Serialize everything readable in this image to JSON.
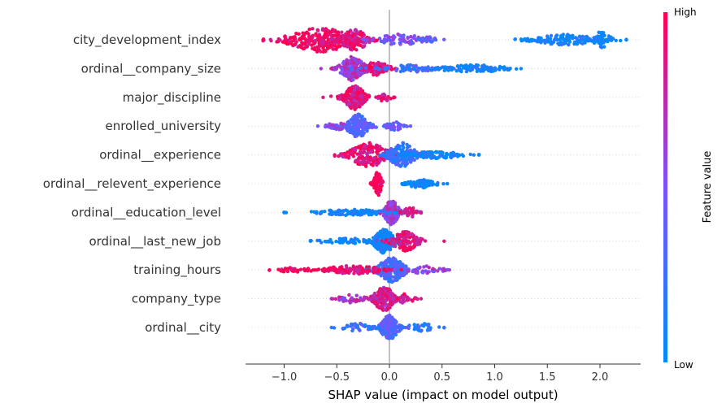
{
  "chart_data": {
    "type": "scatter",
    "subtype": "shap-beeswarm",
    "title": "",
    "xlabel": "SHAP value (impact on model output)",
    "ylabel": "",
    "xlim": [
      -1.35,
      2.4
    ],
    "xticks": [
      -1.0,
      -0.5,
      0.0,
      0.5,
      1.0,
      1.5,
      2.0
    ],
    "xtick_labels": [
      "−1.0",
      "−0.5",
      "0.0",
      "0.5",
      "1.0",
      "1.5",
      "2.0"
    ],
    "grid": false,
    "zero_line": true,
    "features": [
      {
        "name": "city_development_index",
        "range": [
          -1.2,
          2.25
        ],
        "clusters": [
          {
            "center": -0.65,
            "spread": 0.22,
            "height": 1.0,
            "value": 0.95,
            "count": 260
          },
          {
            "center": -0.33,
            "spread": 0.09,
            "height": 0.9,
            "value": 0.85,
            "count": 120
          },
          {
            "center": 0.1,
            "spread": 0.15,
            "height": 0.5,
            "value": 0.5,
            "count": 70
          },
          {
            "center": 0.38,
            "spread": 0.06,
            "height": 0.3,
            "value": 0.4,
            "count": 20
          },
          {
            "center": 1.65,
            "spread": 0.22,
            "height": 0.45,
            "value": 0.05,
            "count": 130
          },
          {
            "center": 2.02,
            "spread": 0.06,
            "height": 0.7,
            "value": 0.02,
            "count": 60
          }
        ]
      },
      {
        "name": "ordinal__company_size",
        "range": [
          -0.65,
          1.25
        ],
        "clusters": [
          {
            "center": -0.35,
            "spread": 0.08,
            "height": 1.0,
            "value": 0.65,
            "count": 180
          },
          {
            "center": -0.12,
            "spread": 0.08,
            "height": 0.6,
            "value": 0.85,
            "count": 90
          },
          {
            "center": 0.2,
            "spread": 0.18,
            "height": 0.3,
            "value": 0.3,
            "count": 70
          },
          {
            "center": 0.8,
            "spread": 0.25,
            "height": 0.3,
            "value": 0.05,
            "count": 110
          }
        ]
      },
      {
        "name": "major_discipline",
        "range": [
          -0.63,
          0.05
        ],
        "clusters": [
          {
            "center": -0.33,
            "spread": 0.07,
            "height": 1.0,
            "value": 0.85,
            "count": 230
          },
          {
            "center": -0.05,
            "spread": 0.04,
            "height": 0.35,
            "value": 0.9,
            "count": 20
          }
        ]
      },
      {
        "name": "enrolled_university",
        "range": [
          -0.68,
          0.2
        ],
        "clusters": [
          {
            "center": -0.3,
            "spread": 0.07,
            "height": 1.0,
            "value": 0.35,
            "count": 170
          },
          {
            "center": -0.5,
            "spread": 0.07,
            "height": 0.3,
            "value": 0.5,
            "count": 40
          },
          {
            "center": 0.05,
            "spread": 0.06,
            "height": 0.35,
            "value": 0.4,
            "count": 40
          }
        ]
      },
      {
        "name": "ordinal__experience",
        "range": [
          -0.52,
          0.85
        ],
        "clusters": [
          {
            "center": -0.2,
            "spread": 0.13,
            "height": 1.0,
            "value": 0.9,
            "count": 210
          },
          {
            "center": 0.12,
            "spread": 0.09,
            "height": 1.0,
            "value": 0.2,
            "count": 180
          },
          {
            "center": 0.45,
            "spread": 0.18,
            "height": 0.3,
            "value": 0.05,
            "count": 90
          }
        ]
      },
      {
        "name": "ordinal__relevent_experience",
        "range": [
          -0.18,
          0.55
        ],
        "clusters": [
          {
            "center": -0.11,
            "spread": 0.025,
            "height": 1.0,
            "value": 0.97,
            "count": 110
          },
          {
            "center": 0.3,
            "spread": 0.1,
            "height": 0.35,
            "value": 0.03,
            "count": 90
          }
        ]
      },
      {
        "name": "ordinal__education_level",
        "range": [
          -1.0,
          0.3
        ],
        "clusters": [
          {
            "center": 0.02,
            "spread": 0.05,
            "height": 1.0,
            "value": 0.65,
            "count": 170
          },
          {
            "center": -0.35,
            "spread": 0.25,
            "height": 0.25,
            "value": 0.05,
            "count": 110
          },
          {
            "center": 0.2,
            "spread": 0.05,
            "height": 0.45,
            "value": 0.8,
            "count": 40
          }
        ]
      },
      {
        "name": "ordinal__last_new_job",
        "range": [
          -0.75,
          0.52
        ],
        "clusters": [
          {
            "center": -0.05,
            "spread": 0.07,
            "height": 1.0,
            "value": 0.05,
            "count": 200
          },
          {
            "center": 0.15,
            "spread": 0.09,
            "height": 0.8,
            "value": 0.9,
            "count": 130
          },
          {
            "center": -0.4,
            "spread": 0.2,
            "height": 0.25,
            "value": 0.03,
            "count": 60
          }
        ]
      },
      {
        "name": "training_hours",
        "range": [
          -1.14,
          0.57
        ],
        "clusters": [
          {
            "center": 0.02,
            "spread": 0.09,
            "height": 1.0,
            "value": 0.3,
            "count": 220
          },
          {
            "center": -0.35,
            "spread": 0.2,
            "height": 0.35,
            "value": 0.92,
            "count": 120
          },
          {
            "center": -0.9,
            "spread": 0.12,
            "height": 0.2,
            "value": 0.95,
            "count": 30
          },
          {
            "center": 0.35,
            "spread": 0.12,
            "height": 0.35,
            "value": 0.6,
            "count": 40
          }
        ]
      },
      {
        "name": "company_type",
        "range": [
          -0.55,
          0.3
        ],
        "clusters": [
          {
            "center": -0.05,
            "spread": 0.07,
            "height": 1.0,
            "value": 0.8,
            "count": 190
          },
          {
            "center": -0.35,
            "spread": 0.09,
            "height": 0.35,
            "value": 0.7,
            "count": 40
          },
          {
            "center": 0.15,
            "spread": 0.06,
            "height": 0.4,
            "value": 0.85,
            "count": 30
          }
        ]
      },
      {
        "name": "ordinal__city",
        "range": [
          -0.55,
          0.52
        ],
        "clusters": [
          {
            "center": 0.0,
            "spread": 0.06,
            "height": 1.0,
            "value": 0.35,
            "count": 180
          },
          {
            "center": -0.3,
            "spread": 0.1,
            "height": 0.35,
            "value": 0.2,
            "count": 40
          },
          {
            "center": 0.3,
            "spread": 0.1,
            "height": 0.35,
            "value": 0.2,
            "count": 30
          }
        ]
      }
    ],
    "colorbar": {
      "title": "Feature value",
      "high_label": "High",
      "low_label": "Low",
      "low_color": "#008bfb",
      "mid_color": "#7c52ff",
      "high_color": "#ff0052"
    }
  }
}
